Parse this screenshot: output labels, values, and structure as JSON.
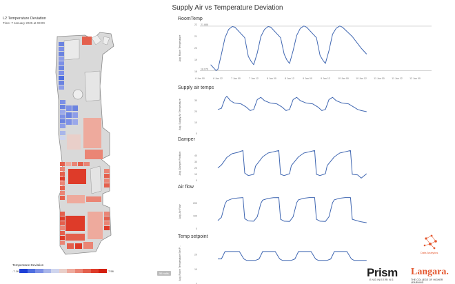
{
  "page": {
    "title": "Supply Air vs Temperature Deviation"
  },
  "left_panel": {
    "title": "L2 Temperature Deviation",
    "time": "Time: 7 January 2025 at 03:00",
    "legend": {
      "title": "Temperature Deviation",
      "min": "-7.16",
      "max": "7.58",
      "colors": [
        "#1e3fd6",
        "#4e6ee0",
        "#7d90e6",
        "#a9b6ea",
        "#cfd5ee",
        "#e9cfc9",
        "#eeaa9d",
        "#ea8575",
        "#e4604d",
        "#de3b29",
        "#d41f10"
      ]
    },
    "nulls_badge": "56 nulls"
  },
  "x_ticks": [
    "6 Jan 00",
    "6 Jan 12",
    "7 Jan 00",
    "7 Jan 12",
    "8 Jan 00",
    "8 Jan 12",
    "9 Jan 00",
    "9 Jan 12",
    "10 Jan 00",
    "10 Jan 12",
    "11 Jan 00",
    "11 Jan 12",
    "12 Jan 00"
  ],
  "charts": [
    {
      "title": "RoomTemp",
      "ylabel": "Avg. Room Temperature",
      "yticks": [
        "18",
        "19",
        "20",
        "21",
        "22"
      ],
      "ymin": 18,
      "ymax": 22,
      "ref_max_label": "21.888",
      "ref_min_label": "18.076",
      "ref_max": 21.888,
      "ref_min": 18.076,
      "x": [
        0.6,
        0.9,
        1.0,
        1.2,
        1.4,
        1.6,
        1.8,
        1.95,
        2.5,
        2.7,
        2.85,
        3.0,
        3.2,
        3.4,
        3.6,
        3.8,
        3.95,
        4.5,
        4.7,
        4.85,
        5.0,
        5.2,
        5.4,
        5.6,
        5.8,
        5.95,
        6.5,
        6.7,
        6.85,
        7.0,
        7.2,
        7.4,
        7.6,
        7.8,
        7.95,
        8.5,
        8.7,
        8.85,
        9.0,
        9.3
      ],
      "y": [
        18.6,
        18.1,
        18.2,
        19.5,
        20.9,
        21.6,
        21.85,
        21.8,
        20.9,
        19.3,
        18.9,
        18.6,
        19.6,
        21.0,
        21.6,
        21.85,
        21.8,
        20.9,
        19.5,
        19.0,
        18.7,
        19.8,
        21.1,
        21.7,
        21.9,
        21.8,
        20.9,
        19.4,
        19.0,
        18.7,
        19.8,
        21.2,
        21.7,
        21.9,
        21.8,
        21.0,
        20.6,
        20.3,
        20.0,
        19.5
      ]
    },
    {
      "title": "Supply air temps",
      "ylabel": "Avg. Supply Air Temperature",
      "yticks": [
        "0",
        "10",
        "20",
        "30"
      ],
      "ymin": 0,
      "ymax": 35,
      "x": [
        1.0,
        1.2,
        1.4,
        1.5,
        1.7,
        1.9,
        2.3,
        2.6,
        2.8,
        3.0,
        3.2,
        3.4,
        3.6,
        3.9,
        4.3,
        4.6,
        4.8,
        5.0,
        5.2,
        5.4,
        5.6,
        5.9,
        6.3,
        6.6,
        6.8,
        7.0,
        7.2,
        7.4,
        7.6,
        7.9,
        8.3,
        8.6,
        8.8,
        9.0,
        9.3
      ],
      "y": [
        22,
        23,
        32,
        34,
        30,
        28,
        27,
        24,
        21,
        22,
        31,
        33,
        30,
        28,
        27,
        24,
        21,
        22,
        31,
        33,
        30,
        28,
        27,
        24,
        21,
        22,
        31,
        33,
        30,
        28,
        27,
        24,
        22,
        21,
        20
      ]
    },
    {
      "title": "Damper",
      "ylabel": "Avg. Damper Position",
      "yticks": [
        "0",
        "10",
        "20",
        "30",
        "40"
      ],
      "ymin": 0,
      "ymax": 55,
      "x": [
        1.0,
        1.2,
        1.5,
        1.8,
        2.1,
        2.4,
        2.5,
        2.7,
        3.0,
        3.1,
        3.5,
        3.8,
        4.1,
        4.4,
        4.5,
        4.7,
        5.0,
        5.1,
        5.5,
        5.8,
        6.1,
        6.4,
        6.5,
        6.7,
        7.0,
        7.1,
        7.5,
        7.8,
        8.1,
        8.4,
        8.5,
        8.8,
        9.0,
        9.3
      ],
      "y": [
        20,
        25,
        37,
        43,
        45,
        48,
        12,
        8,
        10,
        23,
        38,
        44,
        46,
        48,
        10,
        8,
        11,
        24,
        38,
        44,
        46,
        48,
        10,
        8,
        11,
        24,
        38,
        44,
        46,
        48,
        10,
        9,
        4,
        11
      ]
    },
    {
      "title": "Air flow",
      "ylabel": "Avg. Air Flow",
      "yticks": [
        "0",
        "100",
        "200"
      ],
      "ymin": 0,
      "ymax": 270,
      "x": [
        1.0,
        1.2,
        1.4,
        1.5,
        1.8,
        2.1,
        2.4,
        2.5,
        2.7,
        3.0,
        3.2,
        3.4,
        3.5,
        3.8,
        4.1,
        4.4,
        4.5,
        4.7,
        5.0,
        5.2,
        5.4,
        5.5,
        5.8,
        6.1,
        6.4,
        6.5,
        6.7,
        7.0,
        7.2,
        7.4,
        7.5,
        7.8,
        8.1,
        8.4,
        8.5,
        8.8,
        9.0,
        9.3
      ],
      "y": [
        65,
        90,
        195,
        220,
        236,
        242,
        245,
        80,
        62,
        60,
        95,
        200,
        225,
        238,
        244,
        245,
        75,
        60,
        58,
        95,
        205,
        228,
        240,
        245,
        245,
        75,
        60,
        58,
        95,
        205,
        228,
        240,
        245,
        245,
        75,
        62,
        55,
        48
      ]
    },
    {
      "title": "Temp setpoint",
      "ylabel": "Avg. Room Temperature Set P...",
      "yticks": [
        "0",
        "10",
        "20"
      ],
      "ymin": 0,
      "ymax": 28,
      "x": [
        1.0,
        1.2,
        1.4,
        2.2,
        2.45,
        2.6,
        3.1,
        3.3,
        3.5,
        4.2,
        4.45,
        4.6,
        5.1,
        5.3,
        5.5,
        6.2,
        6.45,
        6.6,
        7.1,
        7.3,
        7.5,
        8.2,
        8.45,
        8.6,
        9.3
      ],
      "y": [
        17,
        17,
        22,
        22,
        17,
        16,
        16,
        17,
        22,
        22,
        17,
        16,
        16,
        17,
        22,
        22,
        17,
        16,
        16,
        17,
        22,
        22,
        17,
        16,
        16
      ]
    }
  ],
  "logos": {
    "prism": "Prism",
    "prism_sub": "ENGINEERING",
    "langara": "Langara.",
    "langara_sub": "THE COLLEGE OF HIGHER LEARNING",
    "data_analytics": "Data Analytics"
  }
}
